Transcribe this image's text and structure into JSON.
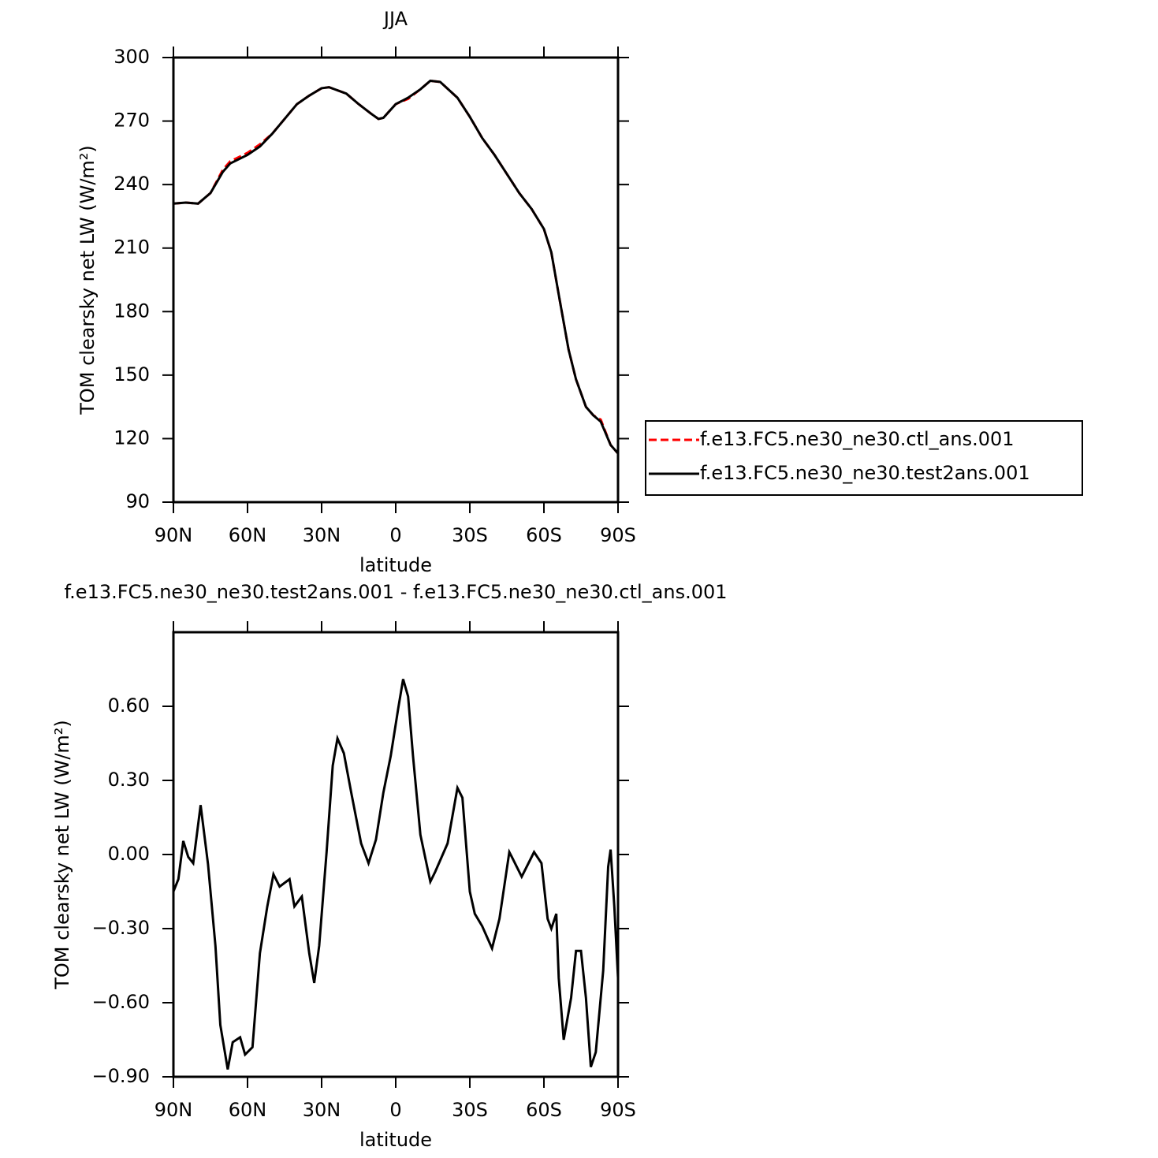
{
  "chart_data": [
    {
      "type": "line",
      "title": "JJA",
      "xlabel": "latitude",
      "ylabel": "TOM clearsky net LW (W/m²)",
      "x": [
        90,
        85,
        80,
        75,
        70,
        67,
        60,
        55,
        50,
        45,
        40,
        35,
        30,
        27,
        20,
        15,
        10,
        7,
        5,
        0,
        -5,
        -10,
        -14,
        -18,
        -25,
        -30,
        -35,
        -40,
        -45,
        -50,
        -55,
        -60,
        -63,
        -66,
        -70,
        -73,
        -77,
        -80,
        -83,
        -87,
        -90
      ],
      "series": [
        {
          "name": "f.e13.FC5.ne30_ne30.ctl_ans.001",
          "color": "#ff0000",
          "line_style": "dashed",
          "values": [
            231,
            231.5,
            231,
            236,
            247,
            251,
            255,
            259,
            264,
            271,
            278,
            282,
            285.5,
            286,
            283,
            278,
            273.5,
            271,
            271.5,
            278,
            280.5,
            285,
            289,
            288.5,
            281,
            272,
            262,
            254,
            245,
            236,
            228.5,
            219,
            208,
            188,
            162,
            148,
            135,
            131,
            129,
            117,
            113
          ]
        },
        {
          "name": "f.e13.FC5.ne30_ne30.test2ans.001",
          "color": "#000000",
          "line_style": "solid",
          "values": [
            231,
            231.5,
            231,
            236,
            246,
            250,
            254,
            258,
            264,
            271,
            278,
            282,
            285.5,
            286,
            283,
            278,
            273.5,
            271,
            271.5,
            278,
            281,
            285,
            289,
            288.5,
            281,
            272,
            262,
            254,
            245,
            236,
            228.5,
            219,
            208,
            188,
            162,
            148,
            135,
            131,
            128,
            117,
            113
          ]
        }
      ],
      "xlim": [
        90,
        -90
      ],
      "ylim": [
        90,
        300
      ],
      "xticks": [
        {
          "value": 90,
          "label": "90N"
        },
        {
          "value": 60,
          "label": "60N"
        },
        {
          "value": 30,
          "label": "30N"
        },
        0,
        {
          "value": -30,
          "label": "30S"
        },
        {
          "value": -60,
          "label": "60S"
        },
        {
          "value": -90,
          "label": "90S"
        }
      ],
      "yticks": [
        90,
        120,
        150,
        180,
        210,
        240,
        270,
        300
      ],
      "legend": "right"
    },
    {
      "type": "line",
      "title": "f.e13.FC5.ne30_ne30.test2ans.001 - f.e13.FC5.ne30_ne30.ctl_ans.001",
      "xlabel": "latitude",
      "ylabel": "TOM clearsky net LW (W/m²)",
      "x": [
        90,
        88,
        86,
        84,
        82,
        79,
        76,
        73,
        71,
        68,
        66,
        63,
        61,
        58,
        55,
        52,
        49.5,
        47,
        43,
        41,
        38,
        35,
        33,
        31,
        28,
        25.5,
        23.6,
        21,
        18,
        14,
        11,
        8,
        5,
        2,
        -1,
        -3,
        -5,
        -7,
        -10,
        -14,
        -16,
        -21,
        -25,
        -27,
        -30,
        -32,
        -35,
        -39,
        -42,
        -46,
        -47,
        -51,
        -56,
        -59,
        -61.5,
        -63,
        -65,
        -66,
        -68,
        -71,
        -73,
        -75,
        -77,
        -79,
        -81,
        -84,
        -86,
        -87,
        -88.5,
        -90
      ],
      "series": [
        {
          "color": "#000000",
          "values": [
            -0.15,
            -0.1,
            0.055,
            -0.01,
            -0.035,
            0.2,
            -0.04,
            -0.37,
            -0.69,
            -0.87,
            -0.76,
            -0.74,
            -0.81,
            -0.78,
            -0.4,
            -0.21,
            -0.08,
            -0.13,
            -0.1,
            -0.21,
            -0.17,
            -0.4,
            -0.52,
            -0.37,
            0.01,
            0.36,
            0.47,
            0.41,
            0.25,
            0.045,
            -0.035,
            0.06,
            0.25,
            0.4,
            0.59,
            0.71,
            0.64,
            0.4,
            0.08,
            -0.11,
            -0.07,
            0.045,
            0.27,
            0.23,
            -0.15,
            -0.24,
            -0.29,
            -0.38,
            -0.26,
            0.01,
            -0.01,
            -0.09,
            0.01,
            -0.035,
            -0.26,
            -0.3,
            -0.24,
            -0.5,
            -0.75,
            -0.58,
            -0.39,
            -0.39,
            -0.58,
            -0.86,
            -0.8,
            -0.47,
            -0.05,
            0.02,
            -0.21,
            -0.5
          ]
        }
      ],
      "xlim": [
        90,
        -90
      ],
      "ylim": [
        -0.9,
        0.9
      ],
      "xticks": [
        {
          "value": 90,
          "label": "90N"
        },
        {
          "value": 60,
          "label": "60N"
        },
        {
          "value": 30,
          "label": "30N"
        },
        0,
        {
          "value": -30,
          "label": "30S"
        },
        {
          "value": -60,
          "label": "60S"
        },
        {
          "value": -90,
          "label": "90S"
        }
      ],
      "yticks": [
        {
          "value": -0.9,
          "label": "−0.90"
        },
        {
          "value": -0.6,
          "label": "−0.60"
        },
        {
          "value": -0.3,
          "label": "−0.30"
        },
        {
          "value": 0,
          "label": "0.00"
        },
        {
          "value": 0.3,
          "label": "0.30"
        },
        {
          "value": 0.6,
          "label": "0.60"
        }
      ]
    }
  ]
}
